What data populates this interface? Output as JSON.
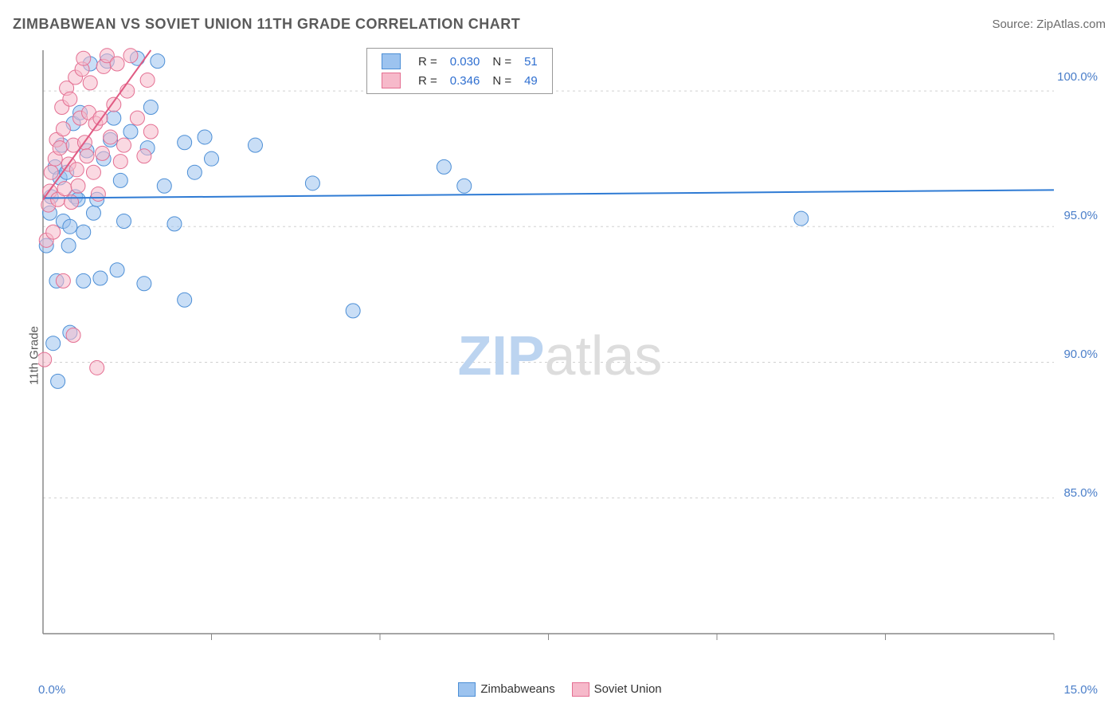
{
  "title": "ZIMBABWEAN VS SOVIET UNION 11TH GRADE CORRELATION CHART",
  "source": "Source: ZipAtlas.com",
  "y_label": "11th Grade",
  "watermark": {
    "a": "ZIP",
    "b": "atlas"
  },
  "type": "scatter",
  "background_color": "#ffffff",
  "grid_color": "#d0d0d0",
  "axis_color": "#888888",
  "x_range": [
    0,
    15
  ],
  "y_range": [
    80,
    101.5
  ],
  "x_ticks": [
    "0.0%",
    "15.0%"
  ],
  "y_ticks": [
    {
      "v": 100,
      "label": "100.0%"
    },
    {
      "v": 95,
      "label": "95.0%"
    },
    {
      "v": 90,
      "label": "90.0%"
    },
    {
      "v": 85,
      "label": "85.0%"
    }
  ],
  "x_minor_ticks": [
    2.5,
    5,
    7.5,
    10,
    12.5,
    15
  ],
  "marker_radius": 9,
  "marker_opacity": 0.55,
  "marker_stroke_width": 1,
  "trend_line_width": 2,
  "series": [
    {
      "name": "Zimbabweans",
      "fill": "#9cc3ef",
      "stroke": "#4d8fd6",
      "line_color": "#2f7bd4",
      "R": "0.030",
      "N": "51",
      "trend": {
        "x1": 0,
        "y1": 96.05,
        "x2": 15,
        "y2": 96.35
      },
      "points": [
        [
          0.05,
          94.3
        ],
        [
          0.1,
          95.5
        ],
        [
          0.12,
          96.1
        ],
        [
          0.15,
          90.7
        ],
        [
          0.18,
          97.2
        ],
        [
          0.2,
          93.0
        ],
        [
          0.22,
          89.3
        ],
        [
          0.25,
          96.8
        ],
        [
          0.28,
          98.0
        ],
        [
          0.3,
          95.2
        ],
        [
          0.35,
          97.0
        ],
        [
          0.38,
          94.3
        ],
        [
          0.4,
          91.1
        ],
        [
          0.45,
          98.8
        ],
        [
          0.48,
          96.1
        ],
        [
          0.52,
          96.0
        ],
        [
          0.55,
          99.2
        ],
        [
          0.6,
          94.8
        ],
        [
          0.65,
          97.8
        ],
        [
          0.7,
          101.0
        ],
        [
          0.75,
          95.5
        ],
        [
          0.8,
          96.0
        ],
        [
          0.85,
          93.1
        ],
        [
          0.9,
          97.5
        ],
        [
          0.95,
          101.1
        ],
        [
          1.0,
          98.2
        ],
        [
          1.05,
          99.0
        ],
        [
          1.1,
          93.4
        ],
        [
          1.15,
          96.7
        ],
        [
          1.2,
          95.2
        ],
        [
          1.3,
          98.5
        ],
        [
          1.4,
          101.2
        ],
        [
          1.5,
          92.9
        ],
        [
          1.55,
          97.9
        ],
        [
          1.6,
          99.4
        ],
        [
          1.7,
          101.1
        ],
        [
          1.8,
          96.5
        ],
        [
          1.95,
          95.1
        ],
        [
          2.1,
          92.3
        ],
        [
          2.1,
          98.1
        ],
        [
          2.25,
          97.0
        ],
        [
          2.4,
          98.3
        ],
        [
          2.5,
          97.5
        ],
        [
          3.15,
          98.0
        ],
        [
          4.0,
          96.6
        ],
        [
          4.6,
          91.9
        ],
        [
          5.95,
          97.2
        ],
        [
          6.25,
          96.5
        ],
        [
          11.25,
          95.3
        ],
        [
          0.6,
          93.0
        ],
        [
          0.4,
          95.0
        ]
      ]
    },
    {
      "name": "Soviet Union",
      "fill": "#f6b9ca",
      "stroke": "#e46f92",
      "line_color": "#e05b83",
      "R": "0.346",
      "N": "49",
      "trend": {
        "x1": 0,
        "y1": 96.0,
        "x2": 1.6,
        "y2": 101.5
      },
      "points": [
        [
          0.02,
          90.1
        ],
        [
          0.05,
          94.5
        ],
        [
          0.08,
          95.8
        ],
        [
          0.1,
          96.3
        ],
        [
          0.12,
          97.0
        ],
        [
          0.15,
          94.8
        ],
        [
          0.18,
          97.5
        ],
        [
          0.2,
          98.2
        ],
        [
          0.22,
          96.0
        ],
        [
          0.25,
          97.9
        ],
        [
          0.28,
          99.4
        ],
        [
          0.3,
          98.6
        ],
        [
          0.32,
          96.4
        ],
        [
          0.35,
          100.1
        ],
        [
          0.38,
          97.3
        ],
        [
          0.4,
          99.7
        ],
        [
          0.42,
          95.9
        ],
        [
          0.45,
          98.0
        ],
        [
          0.48,
          100.5
        ],
        [
          0.5,
          97.1
        ],
        [
          0.52,
          96.5
        ],
        [
          0.55,
          99.0
        ],
        [
          0.58,
          100.8
        ],
        [
          0.6,
          101.2
        ],
        [
          0.62,
          98.1
        ],
        [
          0.65,
          97.6
        ],
        [
          0.68,
          99.2
        ],
        [
          0.7,
          100.3
        ],
        [
          0.75,
          97.0
        ],
        [
          0.78,
          98.8
        ],
        [
          0.8,
          89.8
        ],
        [
          0.82,
          96.2
        ],
        [
          0.85,
          99.0
        ],
        [
          0.88,
          97.7
        ],
        [
          0.9,
          100.9
        ],
        [
          0.95,
          101.3
        ],
        [
          1.0,
          98.3
        ],
        [
          1.05,
          99.5
        ],
        [
          1.1,
          101.0
        ],
        [
          1.15,
          97.4
        ],
        [
          1.2,
          98.0
        ],
        [
          1.25,
          100.0
        ],
        [
          1.3,
          101.3
        ],
        [
          1.4,
          99.0
        ],
        [
          1.5,
          97.6
        ],
        [
          1.55,
          100.4
        ],
        [
          1.6,
          98.5
        ],
        [
          0.3,
          93.0
        ],
        [
          0.45,
          91.0
        ]
      ]
    }
  ]
}
